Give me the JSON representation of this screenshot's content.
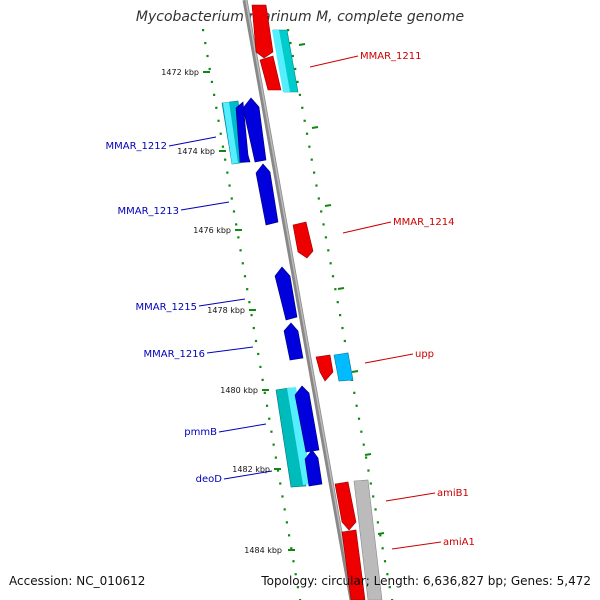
{
  "title": "Mycobacterium marinum M, complete genome",
  "accession_text": "Accession: NC_010612",
  "summary_text": "Topology: circular; Length: 6,636,827 bp; Genes: 5,472",
  "colors": {
    "backbone": "#888888",
    "cds_forward": "#ee0000",
    "cds_reverse": "#0000dd",
    "rna_forward": "#00ccee",
    "rna_reverse": "#00bbbb",
    "grey_feature": "#bbbbbb",
    "tick": "#118811",
    "minus_label": "#0000bb",
    "plus_label": "#cc0000"
  },
  "ticks": [
    {
      "label": "1472 kbp"
    },
    {
      "label": "1474 kbp"
    },
    {
      "label": "1476 kbp"
    },
    {
      "label": "1478 kbp"
    },
    {
      "label": "1480 kbp"
    },
    {
      "label": "1482 kbp"
    },
    {
      "label": "1484 kbp"
    }
  ],
  "genes_minus": [
    {
      "label": "MMAR_1212"
    },
    {
      "label": "MMAR_1213"
    },
    {
      "label": "MMAR_1215"
    },
    {
      "label": "MMAR_1216"
    },
    {
      "label": "pmmB"
    },
    {
      "label": "deoD"
    }
  ],
  "genes_plus": [
    {
      "label": "MMAR_1211"
    },
    {
      "label": "MMAR_1214"
    },
    {
      "label": "upp"
    },
    {
      "label": "amiB1"
    },
    {
      "label": "amiA1"
    }
  ]
}
